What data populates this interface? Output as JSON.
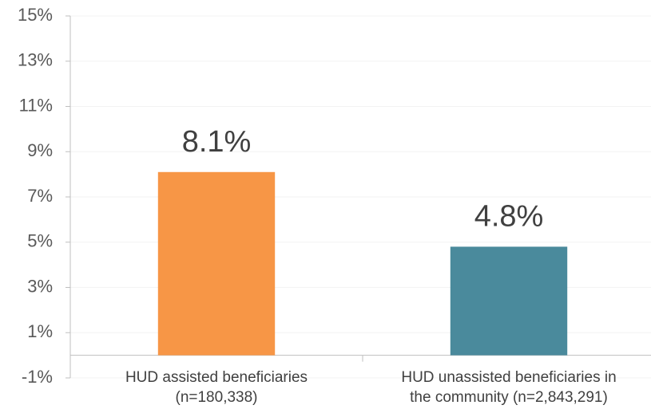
{
  "chart_data": {
    "type": "bar",
    "categories": [
      "HUD assisted beneficiaries\n(n=180,338)",
      "HUD unassisted beneficiaries in\nthe community (n=2,843,291)"
    ],
    "values": [
      8.1,
      4.8
    ],
    "value_labels": [
      "8.1%",
      "4.8%"
    ],
    "colors": [
      "#f79646",
      "#4a8a9c"
    ],
    "ylim": [
      -1,
      15
    ],
    "yticks": [
      {
        "value": -1,
        "label": "-1%"
      },
      {
        "value": 1,
        "label": "1%"
      },
      {
        "value": 3,
        "label": "3%"
      },
      {
        "value": 5,
        "label": "5%"
      },
      {
        "value": 7,
        "label": "7%"
      },
      {
        "value": 9,
        "label": "9%"
      },
      {
        "value": 11,
        "label": "11%"
      },
      {
        "value": 13,
        "label": "13%"
      },
      {
        "value": 15,
        "label": "15%"
      }
    ],
    "grid": true
  }
}
